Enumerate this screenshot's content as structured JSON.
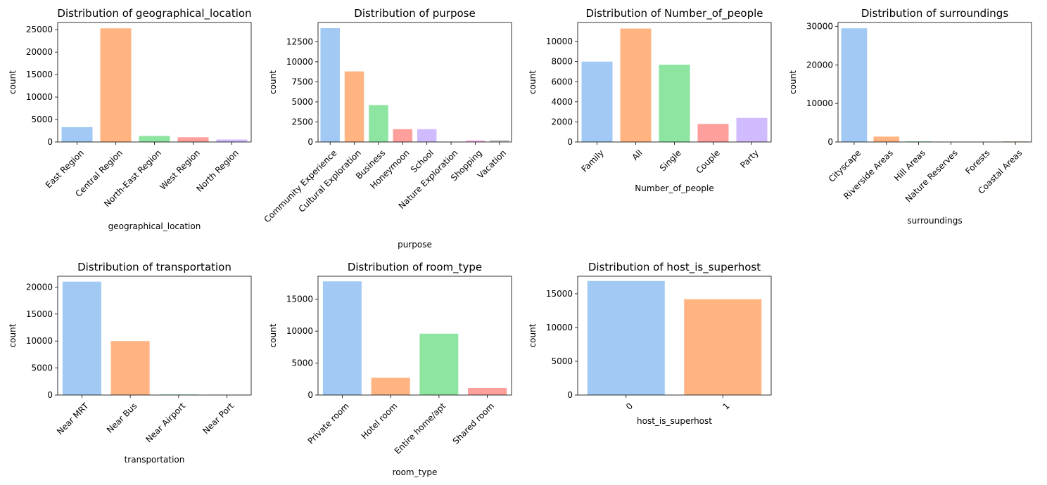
{
  "chart_data": [
    {
      "type": "bar",
      "title": "Distribution of geographical_location",
      "xlabel": "geographical_location",
      "ylabel": "count",
      "categories": [
        "East Region",
        "Central Region",
        "North-East Region",
        "West Region",
        "North Region"
      ],
      "values": [
        3300,
        25300,
        1350,
        1050,
        550
      ],
      "ylim": [
        0,
        26600
      ],
      "yticks": [
        0,
        5000,
        10000,
        15000,
        20000,
        25000
      ],
      "colors": [
        "#a1c9f4",
        "#ffb482",
        "#8de5a1",
        "#ff9f9b",
        "#d0bbff"
      ]
    },
    {
      "type": "bar",
      "title": "Distribution of purpose",
      "xlabel": "purpose",
      "ylabel": "count",
      "categories": [
        "Community Experience",
        "Cultural Exploration",
        "Business",
        "Honeymoon",
        "School",
        "Nature Exploration",
        "Shopping",
        "Vacation"
      ],
      "values": [
        14200,
        8800,
        4600,
        1600,
        1600,
        50,
        200,
        250
      ],
      "ylim": [
        0,
        14900
      ],
      "yticks": [
        0,
        2500,
        5000,
        7500,
        10000,
        12500
      ],
      "colors": [
        "#a1c9f4",
        "#ffb482",
        "#8de5a1",
        "#ff9f9b",
        "#d0bbff",
        "#debb9b",
        "#fab0e4",
        "#cfcfcf"
      ]
    },
    {
      "type": "bar",
      "title": "Distribution of Number_of_people",
      "xlabel": "Number_of_people",
      "ylabel": "count",
      "categories": [
        "Family",
        "All",
        "Single",
        "Couple",
        "Party"
      ],
      "values": [
        8000,
        11300,
        7700,
        1800,
        2400
      ],
      "ylim": [
        0,
        11900
      ],
      "yticks": [
        0,
        2000,
        4000,
        6000,
        8000,
        10000
      ],
      "colors": [
        "#a1c9f4",
        "#ffb482",
        "#8de5a1",
        "#ff9f9b",
        "#d0bbff"
      ]
    },
    {
      "type": "bar",
      "title": "Distribution of surroundings",
      "xlabel": "surroundings",
      "ylabel": "count",
      "categories": [
        "Cityscape",
        "Riverside Areas",
        "Hill Areas",
        "Nature Reserves",
        "Forests",
        "Coastal Areas"
      ],
      "values": [
        29500,
        1400,
        150,
        50,
        50,
        150
      ],
      "ylim": [
        0,
        31000
      ],
      "yticks": [
        0,
        10000,
        20000,
        30000
      ],
      "colors": [
        "#a1c9f4",
        "#ffb482",
        "#8de5a1",
        "#ff9f9b",
        "#d0bbff",
        "#debb9b"
      ]
    },
    {
      "type": "bar",
      "title": "Distribution of transportation",
      "xlabel": "transportation",
      "ylabel": "count",
      "categories": [
        "Near MRT",
        "Near Bus",
        "Near Airport",
        "Near Port"
      ],
      "values": [
        21000,
        10000,
        100,
        50
      ],
      "ylim": [
        0,
        22000
      ],
      "yticks": [
        0,
        5000,
        10000,
        15000,
        20000
      ],
      "colors": [
        "#a1c9f4",
        "#ffb482",
        "#8de5a1",
        "#ff9f9b"
      ]
    },
    {
      "type": "bar",
      "title": "Distribution of room_type",
      "xlabel": "room_type",
      "ylabel": "count",
      "categories": [
        "Private room",
        "Hotel room",
        "Entire home/apt",
        "Shared room"
      ],
      "values": [
        17800,
        2700,
        9600,
        1100
      ],
      "ylim": [
        0,
        18600
      ],
      "yticks": [
        0,
        5000,
        10000,
        15000
      ],
      "colors": [
        "#a1c9f4",
        "#ffb482",
        "#8de5a1",
        "#ff9f9b"
      ]
    },
    {
      "type": "bar",
      "title": "Distribution of host_is_superhost",
      "xlabel": "host_is_superhost",
      "ylabel": "count",
      "categories": [
        "0",
        "1"
      ],
      "values": [
        16900,
        14200
      ],
      "ylim": [
        0,
        17600
      ],
      "yticks": [
        0,
        5000,
        10000,
        15000
      ],
      "colors": [
        "#a1c9f4",
        "#ffb482"
      ]
    }
  ]
}
